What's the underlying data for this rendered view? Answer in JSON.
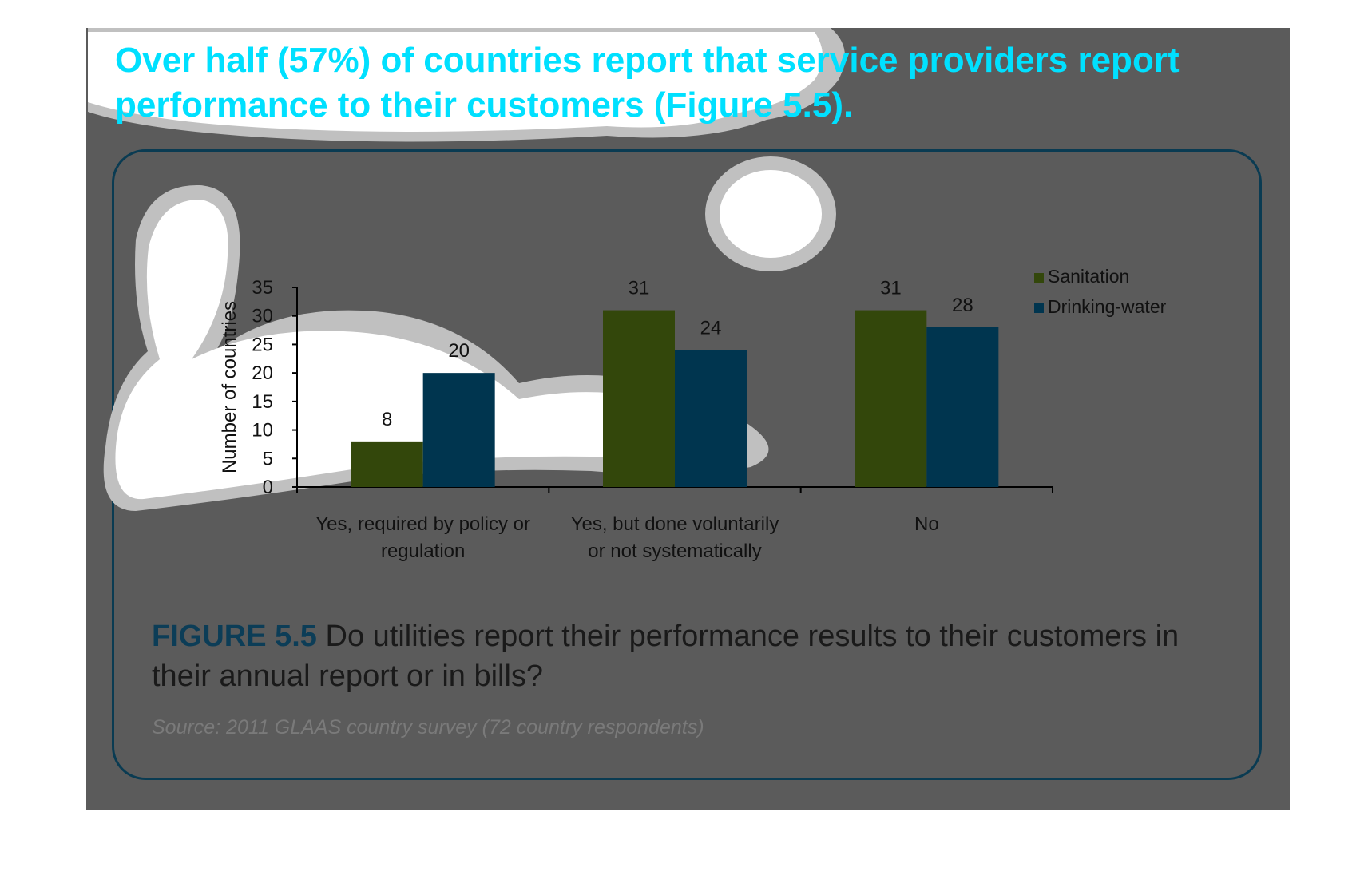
{
  "headline": "Over half (57%) of countries report that service providers report performance to their customers (Figure 5.5).",
  "figure": {
    "label": "FIGURE 5.5",
    "caption": " Do utilities report their performance results to their customers in their annual report or in bills?",
    "source": "Source: 2011 GLAAS country survey (72 country respondents)"
  },
  "colors": {
    "panel": "#5b5b5b",
    "sanitation": "#33470b",
    "drinking_water": "#00354f",
    "headline": "#00e0ff"
  },
  "chart_data": {
    "type": "bar",
    "categories": [
      [
        "Yes, required by policy or",
        "regulation"
      ],
      [
        "Yes, but done voluntarily",
        "or not systematically"
      ],
      [
        "No"
      ]
    ],
    "series": [
      {
        "name": "Sanitation",
        "values": [
          8,
          31,
          31
        ]
      },
      {
        "name": "Drinking-water",
        "values": [
          20,
          24,
          28
        ]
      }
    ],
    "ylabel": "Number of countries",
    "ylim": [
      0,
      35
    ],
    "yticks": [
      0,
      5,
      10,
      15,
      20,
      25,
      30,
      35
    ],
    "legend": "right",
    "grid": false
  }
}
